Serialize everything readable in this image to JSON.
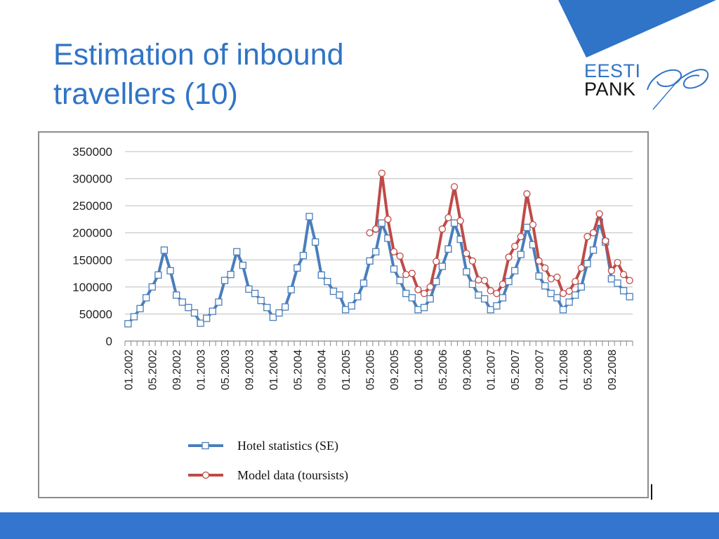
{
  "slide": {
    "title_line1": "Estimation of inbound",
    "title_line2": "travellers (10)",
    "logo_top": "EESTI",
    "logo_bottom": "PANK",
    "title_color": "#2f74c6",
    "accent_color": "#2f74c6",
    "footer_color": "#3476cf"
  },
  "chart_data": {
    "type": "line",
    "title": "",
    "xlabel": "",
    "ylabel": "",
    "ylim": [
      0,
      350000
    ],
    "y_ticks": [
      "0",
      "50000",
      "100000",
      "150000",
      "200000",
      "250000",
      "300000",
      "350000"
    ],
    "x_tick_labels": [
      "01.2002",
      "05.2002",
      "09.2002",
      "01.2003",
      "05.2003",
      "09.2003",
      "01.2004",
      "05.2004",
      "09.2004",
      "01.2005",
      "05.2005",
      "09.2005",
      "01.2006",
      "05.2006",
      "09.2006",
      "01.2007",
      "05.2007",
      "09.2007",
      "01.2008",
      "05.2008",
      "09.2008"
    ],
    "grid": true,
    "legend_position": "bottom",
    "series": [
      {
        "name": "Hotel statistics (SE)",
        "color": "#4a7ebb",
        "marker": "square",
        "start_month_index": 0,
        "values": [
          32000,
          45000,
          60000,
          80000,
          100000,
          122000,
          168000,
          130000,
          85000,
          72000,
          62000,
          52000,
          33000,
          42000,
          55000,
          72000,
          112000,
          123000,
          165000,
          140000,
          96000,
          88000,
          75000,
          62000,
          44000,
          52000,
          63000,
          95000,
          135000,
          158000,
          230000,
          183000,
          122000,
          110000,
          92000,
          85000,
          58000,
          65000,
          82000,
          107000,
          148000,
          165000,
          218000,
          190000,
          133000,
          112000,
          88000,
          80000,
          58000,
          62000,
          78000,
          110000,
          138000,
          170000,
          218000,
          188000,
          128000,
          105000,
          85000,
          78000,
          58000,
          65000,
          80000,
          110000,
          130000,
          160000,
          210000,
          178000,
          120000,
          102000,
          88000,
          80000,
          58000,
          72000,
          85000,
          100000,
          143000,
          168000,
          220000,
          183000,
          115000,
          107000,
          93000,
          82000
        ]
      },
      {
        "name": "Model data (toursists)",
        "color": "#be4b48",
        "marker": "circle",
        "start_month_index": 40,
        "values": [
          200000,
          207000,
          310000,
          225000,
          165000,
          157000,
          123000,
          125000,
          95000,
          88000,
          100000,
          147000,
          207000,
          228000,
          285000,
          222000,
          162000,
          148000,
          113000,
          112000,
          93000,
          88000,
          105000,
          155000,
          175000,
          193000,
          272000,
          215000,
          148000,
          135000,
          115000,
          118000,
          88000,
          92000,
          110000,
          135000,
          193000,
          200000,
          235000,
          185000,
          130000,
          145000,
          123000,
          112000
        ]
      }
    ]
  }
}
